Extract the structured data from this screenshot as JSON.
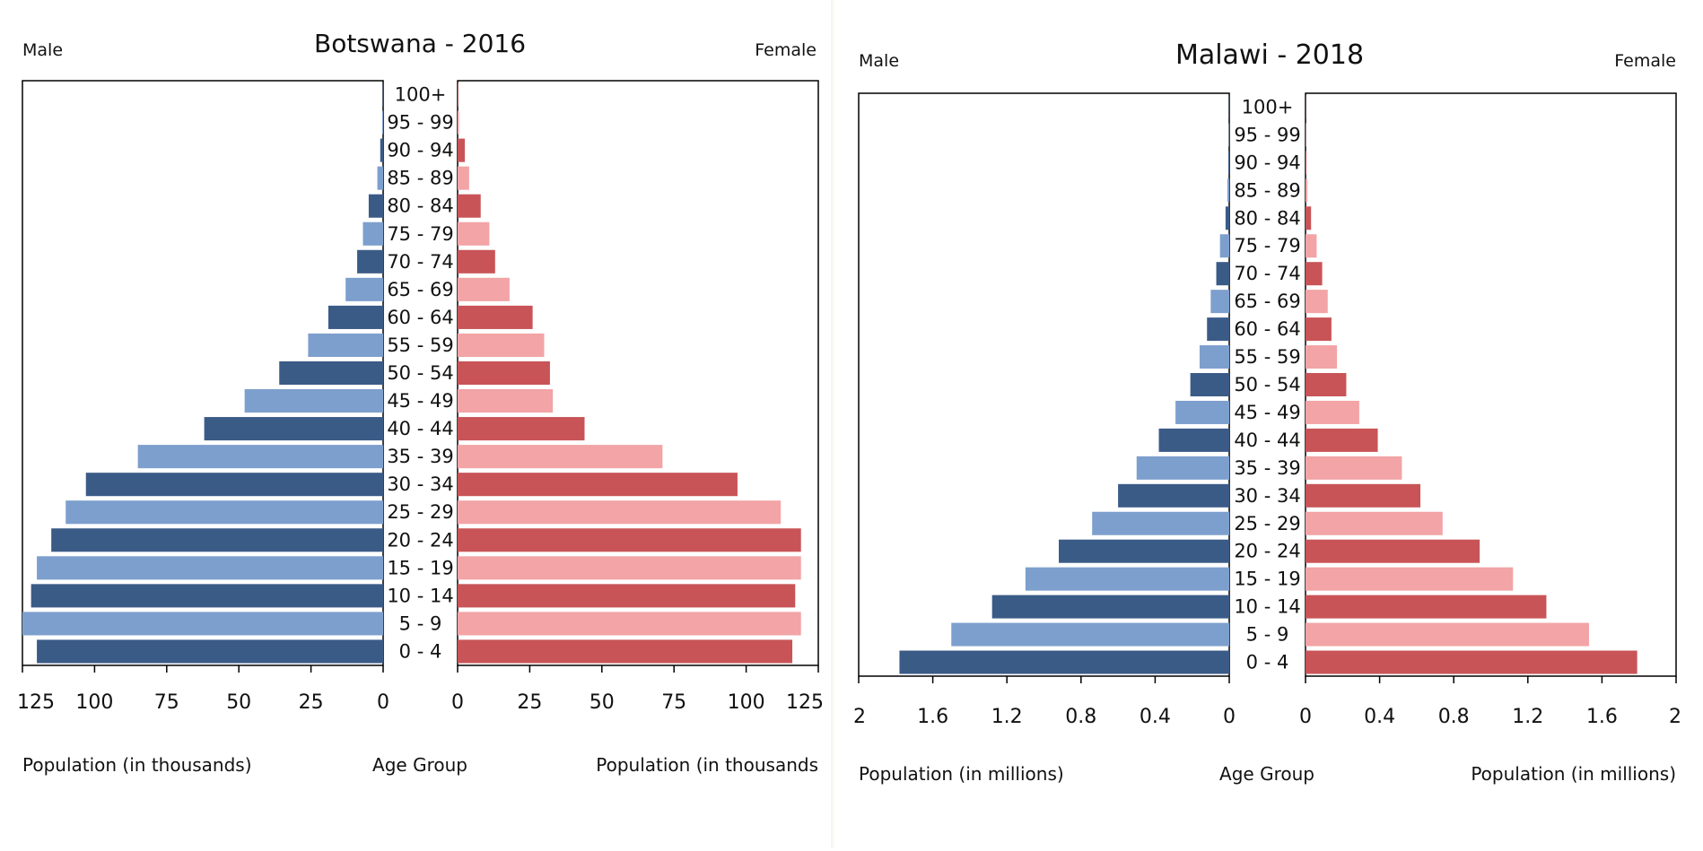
{
  "chart_data": [
    {
      "type": "bar",
      "subtype": "population-pyramid",
      "title": "Botswana - 2016",
      "left_label": "Male",
      "right_label": "Female",
      "center_label": "Age Group",
      "xlabel_left": "Population (in thousands)",
      "xlabel_right": "Population (in thousands",
      "xlim": [
        0,
        125
      ],
      "ticks": [
        "125",
        "100",
        "75",
        "50",
        "25",
        "0",
        "0",
        "25",
        "50",
        "75",
        "100",
        "125"
      ],
      "tick_values": [
        125,
        100,
        75,
        50,
        25,
        0
      ],
      "categories": [
        "0 - 4",
        "5 - 9",
        "10 - 14",
        "15 - 19",
        "20 - 24",
        "25 - 29",
        "30 - 34",
        "35 - 39",
        "40 - 44",
        "45 - 49",
        "50 - 54",
        "55 - 59",
        "60 - 64",
        "65 - 69",
        "70 - 74",
        "75 - 79",
        "80 - 84",
        "85 - 89",
        "90 - 94",
        "95 - 99",
        "100+"
      ],
      "series": [
        {
          "name": "Male",
          "values": [
            120,
            125,
            122,
            120,
            115,
            110,
            103,
            85,
            62,
            48,
            36,
            26,
            19,
            13,
            9,
            7,
            5,
            2,
            1,
            0.3,
            0.1
          ]
        },
        {
          "name": "Female",
          "values": [
            116,
            119,
            117,
            119,
            119,
            112,
            97,
            71,
            44,
            33,
            32,
            30,
            26,
            18,
            13,
            11,
            8,
            4,
            2.5,
            0.5,
            0.2
          ]
        }
      ],
      "colors": {
        "male_dark": "#3b5b87",
        "male_light": "#7d9fcd",
        "female_dark": "#c85457",
        "female_light": "#f2a4a6"
      }
    },
    {
      "type": "bar",
      "subtype": "population-pyramid",
      "title": "Malawi - 2018",
      "left_label": "Male",
      "right_label": "Female",
      "center_label": "Age Group",
      "xlabel_left": "Population (in millions)",
      "xlabel_right": "Population (in millions)",
      "xlim": [
        0,
        2
      ],
      "ticks": [
        "2",
        "1.6",
        "1.2",
        "0.8",
        "0.4",
        "0",
        "0",
        "0.4",
        "0.8",
        "1.2",
        "1.6",
        "2"
      ],
      "tick_values": [
        2,
        1.6,
        1.2,
        0.8,
        0.4,
        0
      ],
      "categories": [
        "0 - 4",
        "5 - 9",
        "10 - 14",
        "15 - 19",
        "20 - 24",
        "25 - 29",
        "30 - 34",
        "35 - 39",
        "40 - 44",
        "45 - 49",
        "50 - 54",
        "55 - 59",
        "60 - 64",
        "65 - 69",
        "70 - 74",
        "75 - 79",
        "80 - 84",
        "85 - 89",
        "90 - 94",
        "95 - 99",
        "100+"
      ],
      "series": [
        {
          "name": "Male",
          "values": [
            1.78,
            1.5,
            1.28,
            1.1,
            0.92,
            0.74,
            0.6,
            0.5,
            0.38,
            0.29,
            0.21,
            0.16,
            0.12,
            0.1,
            0.07,
            0.05,
            0.02,
            0.01,
            0.005,
            0.002,
            0.001
          ]
        },
        {
          "name": "Female",
          "values": [
            1.79,
            1.53,
            1.3,
            1.12,
            0.94,
            0.74,
            0.62,
            0.52,
            0.39,
            0.29,
            0.22,
            0.17,
            0.14,
            0.12,
            0.09,
            0.06,
            0.03,
            0.01,
            0.005,
            0.002,
            0.001
          ]
        }
      ],
      "colors": {
        "male_dark": "#3b5b87",
        "male_light": "#7d9fcd",
        "female_dark": "#c85457",
        "female_light": "#f2a4a6"
      }
    }
  ]
}
